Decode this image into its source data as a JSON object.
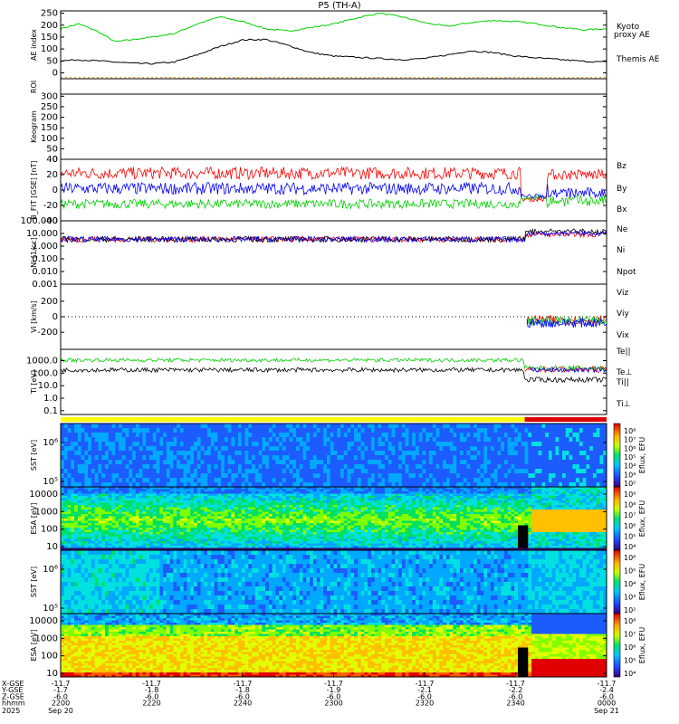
{
  "chart_data": {
    "type": "line",
    "title": "P5 (TH-A)",
    "x_axis": {
      "rows": [
        {
          "label": "X-GSE",
          "values": [
            "-11.7",
            "-11.7",
            "-11.7",
            "-11.7",
            "-11.7",
            "-11.7",
            "-11.7"
          ]
        },
        {
          "label": "Y-GSE",
          "values": [
            "-1.7",
            "-1.8",
            "-1.8",
            "-1.9",
            "-2.1",
            "-2.2",
            "-2.4"
          ]
        },
        {
          "label": "Z-GSE",
          "values": [
            "-6.0",
            "-6.0",
            "-6.0",
            "-6.0",
            "-6.0",
            "-6.0",
            "-6.0"
          ]
        },
        {
          "label": "hhmm",
          "values": [
            "2200",
            "2220",
            "2240",
            "2300",
            "2320",
            "2340",
            "0000"
          ]
        }
      ],
      "year": "2025",
      "date_start": "Sep 20",
      "date_end": "Sep 21"
    },
    "panels": [
      {
        "id": "ae",
        "ylabel": "AE index",
        "yticks": [
          "250",
          "200",
          "150",
          "100",
          "50",
          "0"
        ],
        "ylim": [
          -25,
          260
        ],
        "series": [
          {
            "name": "Kyoto proxy AE",
            "color": "#00d000",
            "time": [
              0,
              4,
              8,
              12,
              16,
              20,
              25,
              30,
              35,
              40,
              45,
              50,
              55,
              60,
              65,
              70,
              75,
              80,
              85,
              90,
              95,
              100,
              105,
              110,
              115,
              120
            ],
            "values": [
              185,
              205,
              175,
              130,
              140,
              150,
              165,
              205,
              235,
              215,
              185,
              175,
              190,
              205,
              230,
              250,
              235,
              210,
              195,
              210,
              220,
              215,
              205,
              190,
              180,
              185
            ]
          },
          {
            "name": "Themis AE",
            "color": "#000000",
            "time": [
              0,
              4,
              8,
              12,
              16,
              20,
              25,
              30,
              35,
              40,
              45,
              50,
              55,
              60,
              65,
              70,
              75,
              80,
              85,
              90,
              95,
              100,
              105,
              110,
              115,
              120
            ],
            "values": [
              50,
              55,
              50,
              45,
              40,
              38,
              45,
              75,
              110,
              138,
              140,
              115,
              85,
              70,
              65,
              60,
              55,
              60,
              75,
              92,
              85,
              70,
              62,
              55,
              48,
              45
            ]
          }
        ]
      },
      {
        "id": "roi",
        "ylabel": "ROI",
        "series_labels": []
      },
      {
        "id": "keogram",
        "ylabel": "Keogram",
        "yticks": [
          "300",
          "250",
          "200",
          "150",
          "100",
          "50",
          "0"
        ],
        "ylim": [
          0,
          310
        ]
      },
      {
        "id": "bfield",
        "ylabel": "B_FIT [GSE] [nT]",
        "yticks": [
          "40",
          "20",
          "0",
          "-20",
          "-40"
        ],
        "ylim": [
          -40,
          40
        ],
        "series": [
          {
            "name": "Bz",
            "color": "#ff0000"
          },
          {
            "name": "By",
            "color": "#00d000"
          },
          {
            "name": "Bx",
            "color": "#0000ff"
          }
        ]
      },
      {
        "id": "density",
        "ylabel": "Ni [1/cc]",
        "yticks": [
          "100.000",
          "10.000",
          "1.000",
          "0.100",
          "0.010",
          "0.001"
        ],
        "scale": "log",
        "ylim": [
          0.001,
          100
        ],
        "series": [
          {
            "name": "Ne",
            "color": "#ff0000"
          },
          {
            "name": "Ni",
            "color": "#000000"
          },
          {
            "name": "Npot",
            "color": "#0000ff"
          }
        ]
      },
      {
        "id": "velocity",
        "ylabel": "Vi [km/s]",
        "yticks": [
          "200",
          "0",
          "-200"
        ],
        "ylim": [
          -420,
          420
        ],
        "series": [
          {
            "name": "Viz",
            "color": "#ff0000"
          },
          {
            "name": "Viy",
            "color": "#00d000"
          },
          {
            "name": "Vix",
            "color": "#0000ff"
          }
        ]
      },
      {
        "id": "temperature",
        "ylabel": "Ti [eV]",
        "yticks": [
          "1000.0",
          "100.0",
          "10.0",
          "1.0",
          "0.1"
        ],
        "scale": "log",
        "ylim": [
          0.05,
          8000
        ],
        "series": [
          {
            "name": "Te||",
            "color": "#000000"
          },
          {
            "name": "Te⊥",
            "color": "#ff0000"
          },
          {
            "name": "Ti||",
            "color": "#00d000"
          },
          {
            "name": "Ti⊥",
            "color": "#0000ff"
          }
        ]
      },
      {
        "id": "sst_e",
        "ylabel": "SST [eV]",
        "yticks": [
          "10⁶",
          "10⁵"
        ],
        "colorbar": {
          "label": "Eflux, EFU",
          "ticks": [
            "10⁸",
            "10⁷",
            "10⁶",
            "10⁵",
            "10⁴",
            "10³",
            "10²"
          ]
        }
      },
      {
        "id": "esa_e",
        "ylabel": "ESA [eV]",
        "yticks": [
          "10000",
          "1000",
          "100",
          "10"
        ],
        "colorbar": {
          "label": "Eflux, EFU",
          "ticks": [
            "10⁹",
            "10⁸",
            "10⁷",
            "10⁶",
            "10⁵",
            "10⁴"
          ]
        }
      },
      {
        "id": "sst_i",
        "ylabel": "SST [eV]",
        "yticks": [
          "10⁶",
          "10⁵"
        ],
        "colorbar": {
          "label": "Eflux, EFU",
          "ticks": [
            "10⁶",
            "10⁵",
            "10⁴",
            "10³",
            "10²"
          ]
        }
      },
      {
        "id": "esa_i",
        "ylabel": "ESA [eV]",
        "yticks": [
          "10000",
          "1000",
          "100",
          "10"
        ],
        "colorbar": {
          "label": "Eflux, EFU",
          "ticks": [
            "10⁸",
            "10⁷",
            "10⁶",
            "10⁵",
            "10⁴"
          ]
        }
      }
    ],
    "mode_bar": {
      "colors": [
        "#ffff00",
        "#dd0000"
      ],
      "switch_time": 102
    },
    "time_range_minutes": [
      0,
      120
    ],
    "colors": {
      "green": "#00d000",
      "red": "#ff0000",
      "blue": "#0000ff",
      "yellow": "#ffff00"
    }
  }
}
